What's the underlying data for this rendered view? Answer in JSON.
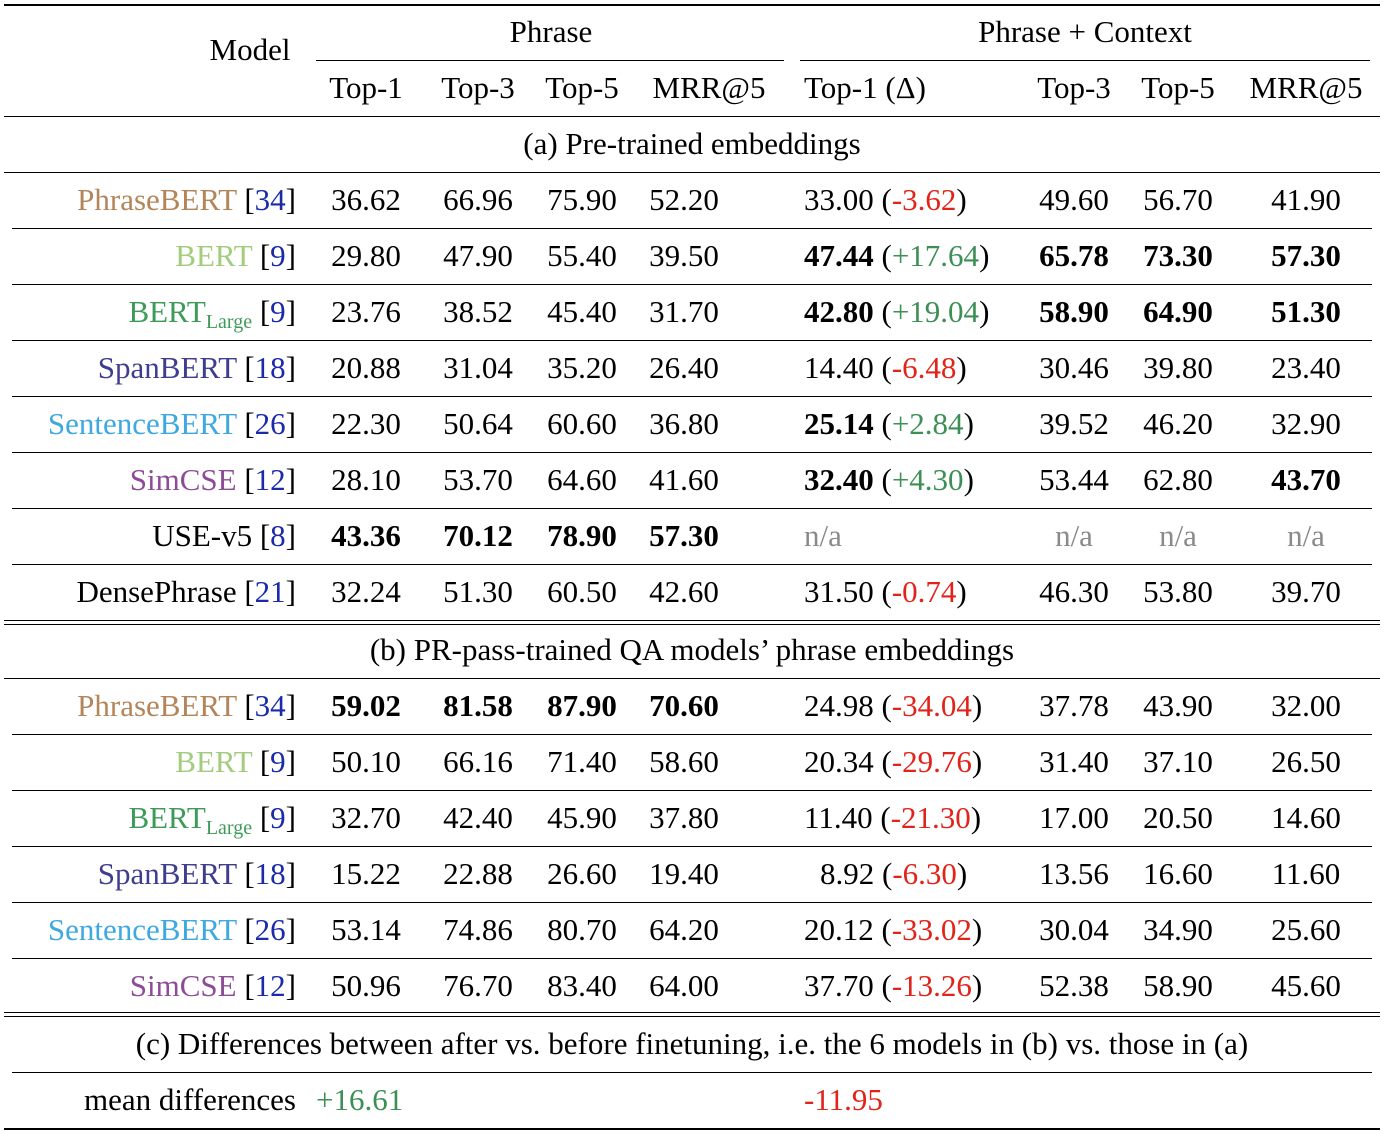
{
  "header": {
    "model": "Model",
    "group_phrase": "Phrase",
    "group_context": "Phrase + Context",
    "cols_phrase": [
      "Top-1",
      "Top-3",
      "Top-5",
      "MRR@5"
    ],
    "col_top1_delta": "Top-1 (Δ)",
    "cols_context_rest": [
      "Top-3",
      "Top-5",
      "MRR@5"
    ]
  },
  "section_a": {
    "title": "(a) Pre-trained embeddings",
    "rows": [
      {
        "model": "PhraseBERT",
        "sub": "",
        "ref": "34",
        "color": "#b5855a",
        "p": [
          "36.62",
          "66.96",
          "75.90",
          "52.20"
        ],
        "pb": [
          false,
          false,
          false,
          false
        ],
        "c1": "33.00",
        "c1b": false,
        "delta": "-3.62",
        "dsign": "neg",
        "c": [
          "49.60",
          "56.70",
          "41.90"
        ],
        "cb": [
          false,
          false,
          false
        ],
        "na": false
      },
      {
        "model": "BERT",
        "sub": "",
        "ref": "9",
        "color": "#a2cc7e",
        "p": [
          "29.80",
          "47.90",
          "55.40",
          "39.50"
        ],
        "pb": [
          false,
          false,
          false,
          false
        ],
        "c1": "47.44",
        "c1b": true,
        "delta": "+17.64",
        "dsign": "pos",
        "c": [
          "65.78",
          "73.30",
          "57.30"
        ],
        "cb": [
          true,
          true,
          true
        ],
        "na": false
      },
      {
        "model": "BERT",
        "sub": "Large",
        "ref": "9",
        "color": "#3d9b58",
        "p": [
          "23.76",
          "38.52",
          "45.40",
          "31.70"
        ],
        "pb": [
          false,
          false,
          false,
          false
        ],
        "c1": "42.80",
        "c1b": true,
        "delta": "+19.04",
        "dsign": "pos",
        "c": [
          "58.90",
          "64.90",
          "51.30"
        ],
        "cb": [
          true,
          true,
          true
        ],
        "na": false
      },
      {
        "model": "SpanBERT",
        "sub": "",
        "ref": "18",
        "color": "#3f3d8e",
        "p": [
          "20.88",
          "31.04",
          "35.20",
          "26.40"
        ],
        "pb": [
          false,
          false,
          false,
          false
        ],
        "c1": "14.40",
        "c1b": false,
        "delta": "-6.48",
        "dsign": "neg",
        "c": [
          "30.46",
          "39.80",
          "23.40"
        ],
        "cb": [
          false,
          false,
          false
        ],
        "na": false
      },
      {
        "model": "SentenceBERT",
        "sub": "",
        "ref": "26",
        "color": "#3ea8e0",
        "p": [
          "22.30",
          "50.64",
          "60.60",
          "36.80"
        ],
        "pb": [
          false,
          false,
          false,
          false
        ],
        "c1": "25.14",
        "c1b": true,
        "delta": "+2.84",
        "dsign": "pos",
        "c": [
          "39.52",
          "46.20",
          "32.90"
        ],
        "cb": [
          false,
          false,
          false
        ],
        "na": false
      },
      {
        "model": "SimCSE",
        "sub": "",
        "ref": "12",
        "color": "#8e4c98",
        "p": [
          "28.10",
          "53.70",
          "64.60",
          "41.60"
        ],
        "pb": [
          false,
          false,
          false,
          false
        ],
        "c1": "32.40",
        "c1b": true,
        "delta": "+4.30",
        "dsign": "pos",
        "c": [
          "53.44",
          "62.80",
          "43.70"
        ],
        "cb": [
          false,
          false,
          true
        ],
        "na": false
      },
      {
        "model": "USE-v5",
        "sub": "",
        "ref": "8",
        "color": "#000000",
        "p": [
          "43.36",
          "70.12",
          "78.90",
          "57.30"
        ],
        "pb": [
          true,
          true,
          true,
          true
        ],
        "c1": "n/a",
        "c1b": false,
        "delta": "",
        "dsign": "",
        "c": [
          "n/a",
          "n/a",
          "n/a"
        ],
        "cb": [
          false,
          false,
          false
        ],
        "na": true
      },
      {
        "model": "DensePhrase",
        "sub": "",
        "ref": "21",
        "color": "#000000",
        "p": [
          "32.24",
          "51.30",
          "60.50",
          "42.60"
        ],
        "pb": [
          false,
          false,
          false,
          false
        ],
        "c1": "31.50",
        "c1b": false,
        "delta": "-0.74",
        "dsign": "neg",
        "c": [
          "46.30",
          "53.80",
          "39.70"
        ],
        "cb": [
          false,
          false,
          false
        ],
        "na": false
      }
    ]
  },
  "section_b": {
    "title": "(b) PR-pass-trained QA models’ phrase embeddings",
    "rows": [
      {
        "model": "PhraseBERT",
        "sub": "",
        "ref": "34",
        "color": "#b5855a",
        "p": [
          "59.02",
          "81.58",
          "87.90",
          "70.60"
        ],
        "pb": [
          true,
          true,
          true,
          true
        ],
        "c1": "24.98",
        "c1b": false,
        "delta": "-34.04",
        "dsign": "neg",
        "c": [
          "37.78",
          "43.90",
          "32.00"
        ],
        "cb": [
          false,
          false,
          false
        ],
        "na": false
      },
      {
        "model": "BERT",
        "sub": "",
        "ref": "9",
        "color": "#a2cc7e",
        "p": [
          "50.10",
          "66.16",
          "71.40",
          "58.60"
        ],
        "pb": [
          false,
          false,
          false,
          false
        ],
        "c1": "20.34",
        "c1b": false,
        "delta": "-29.76",
        "dsign": "neg",
        "c": [
          "31.40",
          "37.10",
          "26.50"
        ],
        "cb": [
          false,
          false,
          false
        ],
        "na": false
      },
      {
        "model": "BERT",
        "sub": "Large",
        "ref": "9",
        "color": "#3d9b58",
        "p": [
          "32.70",
          "42.40",
          "45.90",
          "37.80"
        ],
        "pb": [
          false,
          false,
          false,
          false
        ],
        "c1": "11.40",
        "c1b": false,
        "delta": "-21.30",
        "dsign": "neg",
        "c": [
          "17.00",
          "20.50",
          "14.60"
        ],
        "cb": [
          false,
          false,
          false
        ],
        "na": false
      },
      {
        "model": "SpanBERT",
        "sub": "",
        "ref": "18",
        "color": "#3f3d8e",
        "p": [
          "15.22",
          "22.88",
          "26.60",
          "19.40"
        ],
        "pb": [
          false,
          false,
          false,
          false
        ],
        "c1": "8.92",
        "c1b": false,
        "delta": "-6.30",
        "dsign": "neg",
        "c": [
          "13.56",
          "16.60",
          "11.60"
        ],
        "cb": [
          false,
          false,
          false
        ],
        "na": false
      },
      {
        "model": "SentenceBERT",
        "sub": "",
        "ref": "26",
        "color": "#3ea8e0",
        "p": [
          "53.14",
          "74.86",
          "80.70",
          "64.20"
        ],
        "pb": [
          false,
          false,
          false,
          false
        ],
        "c1": "20.12",
        "c1b": false,
        "delta": "-33.02",
        "dsign": "neg",
        "c": [
          "30.04",
          "34.90",
          "25.60"
        ],
        "cb": [
          false,
          false,
          false
        ],
        "na": false
      },
      {
        "model": "SimCSE",
        "sub": "",
        "ref": "12",
        "color": "#8e4c98",
        "p": [
          "50.96",
          "76.70",
          "83.40",
          "64.00"
        ],
        "pb": [
          false,
          false,
          false,
          false
        ],
        "c1": "37.70",
        "c1b": false,
        "delta": "-13.26",
        "dsign": "neg",
        "c": [
          "52.38",
          "58.90",
          "45.60"
        ],
        "cb": [
          false,
          false,
          false
        ],
        "na": false
      }
    ]
  },
  "section_c": {
    "title": "(c) Differences between after vs. before finetuning, i.e. the 6 models in (b) vs. those in (a)",
    "label": "mean differences",
    "phrase_diff": "+16.61",
    "context_diff": "-11.95"
  },
  "colors": {
    "positive": "#3c8f55",
    "negative": "#e2231a",
    "ref": "#1a2aa8",
    "na": "#8a8a8a"
  }
}
